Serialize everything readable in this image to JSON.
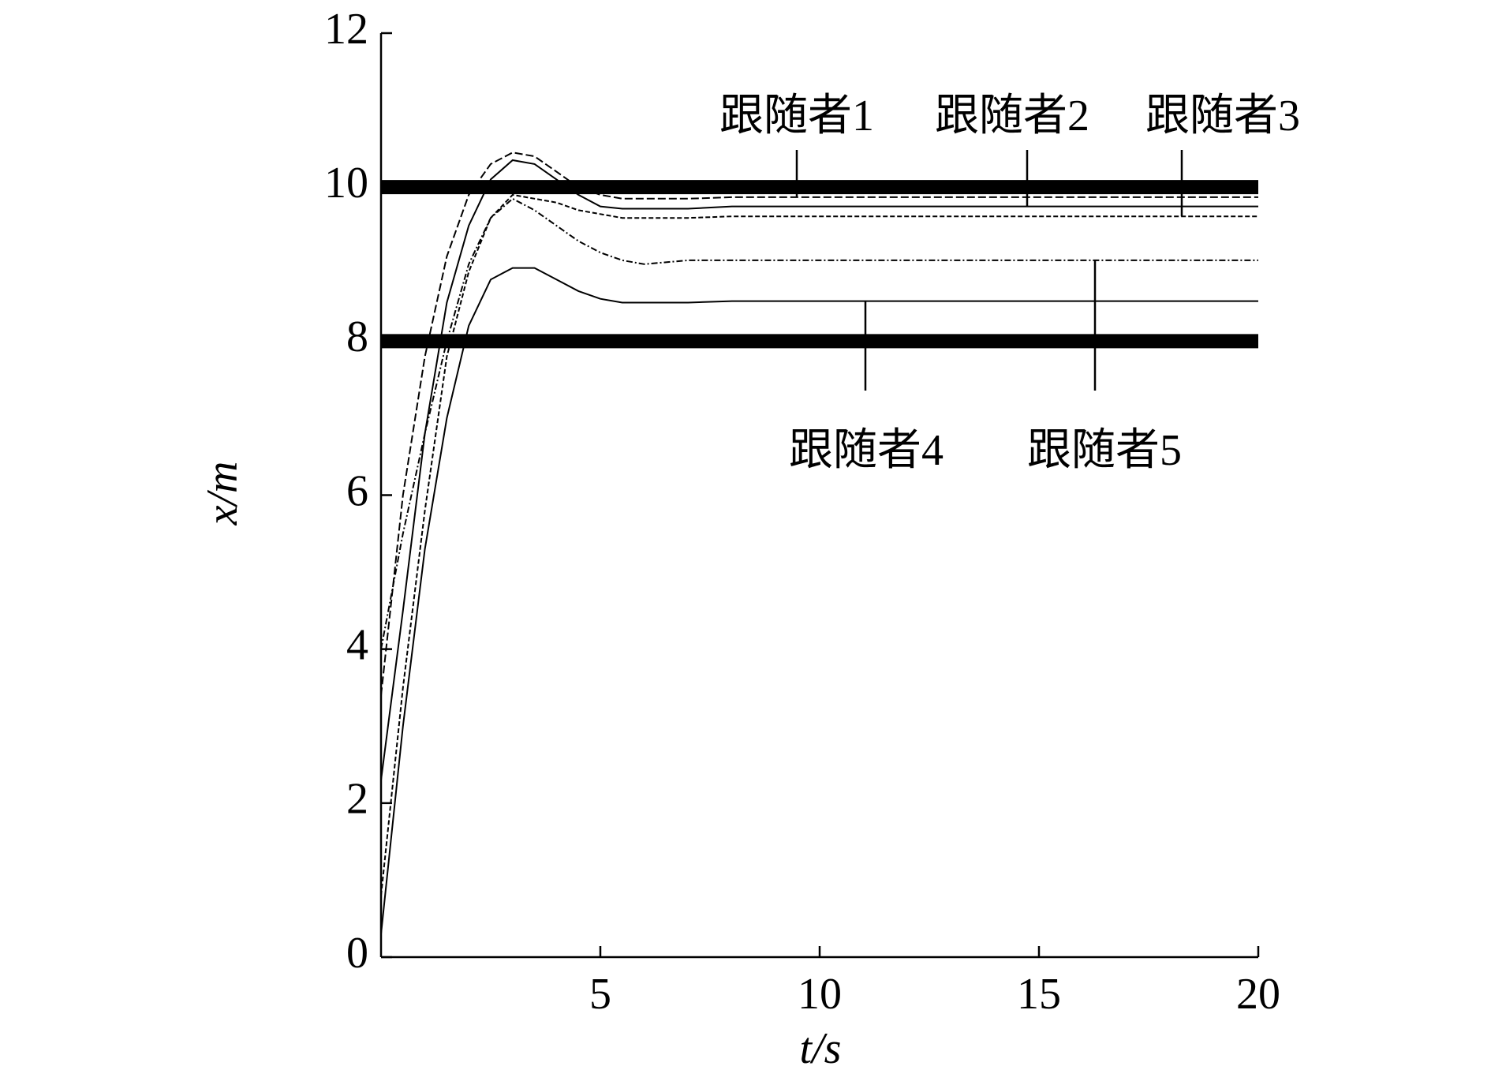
{
  "chart_data": {
    "type": "line",
    "xlabel": "t/s",
    "ylabel": "x/m",
    "x": [
      0,
      0.5,
      1,
      1.5,
      2,
      2.5,
      3,
      3.5,
      4,
      4.5,
      5,
      5.5,
      6,
      7,
      8,
      10,
      12,
      14,
      16,
      18,
      20
    ],
    "series": [
      {
        "name": "跟随者1",
        "color": "#000000",
        "dash": "10 4",
        "values": [
          3.4,
          6.0,
          7.8,
          9.1,
          9.9,
          10.3,
          10.45,
          10.4,
          10.2,
          10.0,
          9.9,
          9.85,
          9.85,
          9.85,
          9.87,
          9.87,
          9.87,
          9.87,
          9.87,
          9.87,
          9.87
        ]
      },
      {
        "name": "跟随者2",
        "color": "#000000",
        "dash": "none",
        "values": [
          2.3,
          4.5,
          6.8,
          8.5,
          9.5,
          10.1,
          10.35,
          10.3,
          10.1,
          9.9,
          9.75,
          9.72,
          9.72,
          9.72,
          9.75,
          9.75,
          9.75,
          9.75,
          9.75,
          9.75,
          9.75
        ]
      },
      {
        "name": "跟随者3",
        "color": "#000000",
        "dash": "6 3",
        "values": [
          0.8,
          3.5,
          5.8,
          7.8,
          8.9,
          9.6,
          9.9,
          9.85,
          9.8,
          9.7,
          9.65,
          9.6,
          9.6,
          9.6,
          9.62,
          9.62,
          9.62,
          9.62,
          9.62,
          9.62,
          9.62
        ]
      },
      {
        "name": "跟随者4",
        "color": "#000000",
        "dash": "none",
        "values": [
          0.3,
          3.0,
          5.3,
          7.0,
          8.2,
          8.8,
          8.95,
          8.95,
          8.8,
          8.65,
          8.55,
          8.5,
          8.5,
          8.5,
          8.52,
          8.52,
          8.52,
          8.52,
          8.52,
          8.52,
          8.52
        ]
      },
      {
        "name": "跟随者5",
        "color": "#000000",
        "dash": "8 3 2 3",
        "values": [
          4.0,
          5.5,
          6.8,
          8.0,
          9.0,
          9.6,
          9.85,
          9.7,
          9.5,
          9.3,
          9.15,
          9.05,
          9.0,
          9.05,
          9.05,
          9.05,
          9.05,
          9.05,
          9.05,
          9.05,
          9.05
        ]
      }
    ],
    "bounds": [
      10,
      8
    ],
    "xlim": [
      0,
      20
    ],
    "ylim": [
      0,
      12
    ],
    "xticks": [
      5,
      10,
      15,
      20
    ],
    "yticks": [
      0,
      2,
      4,
      6,
      8,
      10,
      12
    ],
    "grid": false
  }
}
